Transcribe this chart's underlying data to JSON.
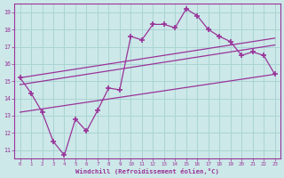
{
  "x_data": [
    0,
    1,
    2,
    3,
    4,
    5,
    6,
    7,
    8,
    9,
    10,
    11,
    12,
    13,
    14,
    15,
    16,
    17,
    18,
    19,
    20,
    21,
    22,
    23
  ],
  "y_data": [
    15.2,
    14.3,
    13.2,
    11.5,
    10.7,
    12.8,
    12.1,
    13.3,
    14.6,
    14.5,
    17.6,
    17.4,
    18.3,
    18.3,
    18.1,
    19.2,
    18.8,
    18.0,
    17.6,
    17.3,
    16.5,
    16.7,
    16.5,
    15.4
  ],
  "line_color": "#993399",
  "bg_color": "#cce8e8",
  "grid_color": "#aad4d4",
  "axis_color": "#993399",
  "xlabel": "Windchill (Refroidissement éolien,°C)",
  "ylim": [
    10.5,
    19.5
  ],
  "xlim": [
    -0.5,
    23.5
  ],
  "yticks": [
    11,
    12,
    13,
    14,
    15,
    16,
    17,
    18,
    19
  ],
  "xticks": [
    0,
    1,
    2,
    3,
    4,
    5,
    6,
    7,
    8,
    9,
    10,
    11,
    12,
    13,
    14,
    15,
    16,
    17,
    18,
    19,
    20,
    21,
    22,
    23
  ],
  "reg_lines": [
    {
      "x": [
        0,
        23
      ],
      "y": [
        15.2,
        17.5
      ]
    },
    {
      "x": [
        0,
        23
      ],
      "y": [
        14.8,
        17.1
      ]
    },
    {
      "x": [
        0,
        23
      ],
      "y": [
        13.2,
        15.4
      ]
    }
  ]
}
